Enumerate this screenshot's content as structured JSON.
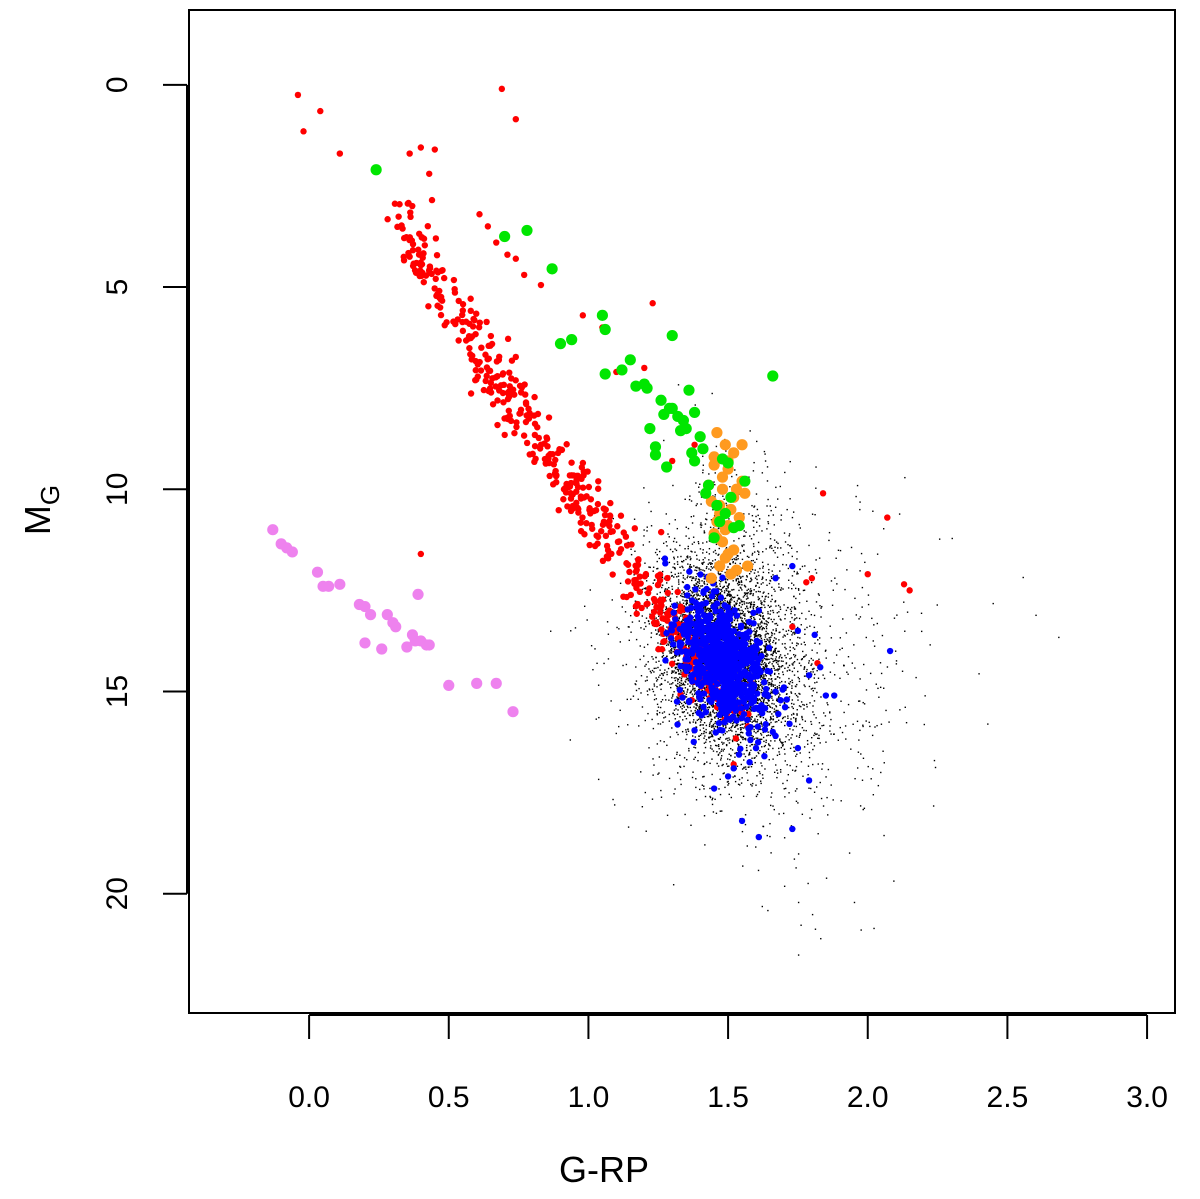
{
  "chart_data": {
    "type": "scatter",
    "title": "",
    "xlabel": "G-RP",
    "ylabel": "M",
    "ylabel_subscript": "G",
    "xlim": [
      -0.43,
      3.1
    ],
    "ylim": [
      -1.85,
      22.95
    ],
    "y_inverted": true,
    "grid": false,
    "legend": "none",
    "x_ticks": [
      0.0,
      0.5,
      1.0,
      1.5,
      2.0,
      2.5,
      3.0
    ],
    "x_tick_labels": [
      "0.0",
      "0.5",
      "1.0",
      "1.5",
      "2.0",
      "2.5",
      "3.0"
    ],
    "y_ticks": [
      0,
      5,
      10,
      15,
      20
    ],
    "y_tick_labels": [
      "0",
      "5",
      "10",
      "15",
      "20"
    ],
    "series": [
      {
        "color": "#000000",
        "marker": "dot",
        "cloud": true,
        "cloud_centers": [
          {
            "x": 1.47,
            "y": 14.1,
            "sx": 0.1,
            "sy": 1.05,
            "n": 4200
          },
          {
            "x": 1.52,
            "y": 14.6,
            "sx": 0.18,
            "sy": 1.6,
            "n": 1400
          },
          {
            "x": 1.55,
            "y": 12.3,
            "sx": 0.12,
            "sy": 1.6,
            "n": 500
          },
          {
            "x": 1.75,
            "y": 14.5,
            "sx": 0.25,
            "sy": 2.0,
            "n": 350
          }
        ],
        "x": [
          1.32,
          1.38,
          1.6,
          1.72,
          1.8,
          1.9,
          2.0,
          1.65,
          1.7,
          1.55,
          1.85,
          1.75,
          1.62,
          1.95,
          2.05,
          2.1,
          2.2,
          2.3,
          2.6,
          1.1,
          1.17,
          1.23,
          1.8,
          1.82,
          1.7,
          1.97,
          1.64,
          1.75,
          1.6,
          1.97,
          1.25,
          1.75,
          1.78
        ],
        "y": [
          7.4,
          7.9,
          8.8,
          9.3,
          10.6,
          11.5,
          12.6,
          17.8,
          18.6,
          19.3,
          19.6,
          20.2,
          20.3,
          20.2,
          13.6,
          14.3,
          15.8,
          11.2,
          13.1,
          13.4,
          13.7,
          15.9,
          20.5,
          18.5,
          19.8,
          12.0,
          20.4,
          21.5,
          10.8,
          10.3,
          17.0,
          19.0,
          13.4
        ]
      },
      {
        "color": "#ff0000",
        "marker": "small",
        "x": [
          -0.04,
          -0.02,
          0.04,
          0.11,
          0.36,
          0.45,
          0.69,
          0.74,
          0.4,
          0.43,
          0.44,
          0.61,
          0.64,
          0.67,
          0.71,
          0.77,
          0.74,
          0.83,
          0.98,
          1.23,
          0.4,
          1.84,
          2.07,
          2.0,
          2.13,
          2.15,
          1.78,
          1.8,
          1.82,
          1.73,
          1.05,
          1.1,
          1.2,
          1.3,
          1.38,
          1.45,
          1.5,
          1.52,
          1.55,
          1.47,
          1.51,
          1.42
        ],
        "y": [
          0.25,
          1.15,
          0.65,
          1.7,
          1.7,
          1.6,
          0.1,
          0.85,
          1.55,
          2.2,
          2.85,
          3.2,
          3.5,
          3.9,
          4.2,
          4.7,
          4.3,
          4.95,
          5.7,
          5.4,
          11.6,
          10.1,
          10.7,
          12.1,
          12.35,
          12.5,
          12.3,
          12.2,
          14.3,
          13.4,
          6.0,
          7.1,
          7.0,
          9.3,
          8.9,
          13.8,
          14.7,
          16.8,
          15.5,
          15.0,
          14.0,
          14.5
        ],
        "sequence": {
          "x_start": 0.34,
          "x_end": 1.55,
          "y_start": 3.1,
          "y_end": 15.5,
          "n": 520
        }
      },
      {
        "color": "#0000ff",
        "marker": "small",
        "x": [
          1.61,
          1.67,
          1.73,
          1.75,
          1.79,
          1.81,
          1.83,
          1.85,
          1.88,
          1.67,
          1.75,
          1.71,
          1.61,
          1.55,
          1.45,
          1.5,
          1.52,
          1.6,
          1.63,
          1.73,
          1.79,
          1.66,
          1.72,
          2.08,
          1.7,
          1.62,
          1.58
        ],
        "y": [
          13.0,
          12.2,
          11.9,
          13.5,
          14.6,
          13.6,
          14.4,
          15.1,
          15.1,
          16.1,
          16.4,
          15.2,
          18.6,
          18.2,
          17.4,
          17.1,
          16.9,
          16.4,
          16.6,
          18.4,
          17.2,
          16.0,
          15.8,
          14.0,
          14.9,
          15.4,
          16.2
        ],
        "blob": {
          "x": 1.48,
          "y": 14.3,
          "sx": 0.07,
          "sy": 0.8,
          "n": 700
        }
      },
      {
        "color": "#ff9a1f",
        "marker": "large",
        "x": [
          1.46,
          1.49,
          1.52,
          1.45,
          1.5,
          1.55,
          1.43,
          1.48,
          1.53,
          1.56,
          1.44,
          1.47,
          1.51,
          1.54,
          1.46,
          1.5,
          1.45,
          1.48,
          1.52,
          1.49,
          1.47,
          1.53,
          1.57,
          1.44,
          1.5,
          1.46,
          1.52,
          1.48,
          1.45,
          1.5,
          1.55,
          1.49,
          1.51,
          1.47
        ],
        "y": [
          8.6,
          8.9,
          9.1,
          9.4,
          9.5,
          9.8,
          9.9,
          10.0,
          10.0,
          10.1,
          10.3,
          10.4,
          10.5,
          10.7,
          10.8,
          10.9,
          11.1,
          11.3,
          11.5,
          11.7,
          11.9,
          12.0,
          11.9,
          12.2,
          11.6,
          11.2,
          10.2,
          9.7,
          9.2,
          9.3,
          8.9,
          11.0,
          12.1,
          10.6
        ]
      },
      {
        "color": "#00e600",
        "marker": "large",
        "x": [
          0.24,
          0.7,
          0.78,
          0.87,
          0.9,
          0.94,
          1.05,
          1.06,
          1.06,
          1.12,
          1.15,
          1.17,
          1.2,
          1.21,
          1.22,
          1.24,
          1.24,
          1.26,
          1.27,
          1.28,
          1.3,
          1.32,
          1.34,
          1.35,
          1.36,
          1.38,
          1.4,
          1.41,
          1.42,
          1.43,
          1.45,
          1.47,
          1.48,
          1.5,
          1.52,
          1.54,
          1.56,
          1.66,
          1.3,
          1.33,
          1.38,
          1.46,
          1.49,
          1.29,
          1.37,
          1.51
        ],
        "y": [
          2.1,
          3.75,
          3.6,
          4.55,
          6.4,
          6.3,
          5.7,
          6.05,
          7.15,
          7.05,
          6.8,
          7.45,
          7.4,
          7.5,
          8.5,
          8.95,
          9.15,
          7.8,
          8.15,
          9.45,
          6.2,
          8.2,
          8.3,
          8.5,
          7.55,
          8.1,
          8.7,
          9.0,
          10.1,
          9.9,
          11.2,
          10.8,
          9.25,
          9.35,
          10.95,
          10.9,
          9.8,
          7.2,
          8.0,
          8.55,
          9.3,
          10.4,
          10.6,
          8.0,
          9.1,
          10.2
        ]
      },
      {
        "color": "#ee82ee",
        "marker": "large",
        "x": [
          -0.13,
          -0.1,
          -0.08,
          -0.06,
          0.03,
          0.05,
          0.07,
          0.11,
          0.18,
          0.2,
          0.22,
          0.28,
          0.3,
          0.31,
          0.35,
          0.38,
          0.4,
          0.42,
          0.2,
          0.26,
          0.39,
          0.43,
          0.37,
          0.5,
          0.6,
          0.67,
          0.73
        ],
        "y": [
          11.0,
          11.35,
          11.45,
          11.55,
          12.05,
          12.4,
          12.4,
          12.35,
          12.85,
          12.9,
          13.1,
          13.1,
          13.3,
          13.4,
          13.9,
          13.75,
          13.75,
          13.85,
          13.8,
          13.95,
          12.6,
          13.85,
          13.6,
          14.85,
          14.8,
          14.8,
          15.5
        ]
      }
    ]
  }
}
